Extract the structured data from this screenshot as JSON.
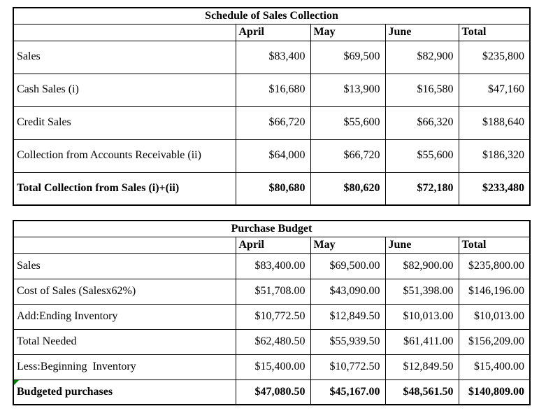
{
  "page": {
    "background_color": "#ffffff",
    "border_color": "#000000",
    "marker_color": "#008000"
  },
  "tables": [
    {
      "title": "Schedule of Sales Collection",
      "columns": [
        "April",
        "May",
        "June",
        "Total"
      ],
      "rows": [
        {
          "label": "Sales",
          "bold": false,
          "marker": false,
          "values": [
            "$83,400",
            "$69,500",
            "$82,900",
            "$235,800"
          ]
        },
        {
          "label": "Cash Sales (i)",
          "bold": false,
          "marker": false,
          "values": [
            "$16,680",
            "$13,900",
            "$16,580",
            "$47,160"
          ]
        },
        {
          "label": "Credit Sales",
          "bold": false,
          "marker": false,
          "values": [
            "$66,720",
            "$55,600",
            "$66,320",
            "$188,640"
          ]
        },
        {
          "label": "Collection from Accounts Receivable (ii)",
          "bold": false,
          "marker": false,
          "values": [
            "$64,000",
            "$66,720",
            "$55,600",
            "$186,320"
          ]
        },
        {
          "label": "Total Collection from Sales (i)+(ii)",
          "bold": true,
          "marker": false,
          "values": [
            "$80,680",
            "$80,620",
            "$72,180",
            "$233,480"
          ]
        }
      ]
    },
    {
      "title": "Purchase Budget",
      "columns": [
        "April",
        "May",
        "June",
        "Total"
      ],
      "rows": [
        {
          "label": "Sales",
          "bold": false,
          "marker": false,
          "values": [
            "$83,400.00",
            "$69,500.00",
            "$82,900.00",
            "$235,800.00"
          ]
        },
        {
          "label": "Cost of Sales (Salesx62%)",
          "bold": false,
          "marker": false,
          "values": [
            "$51,708.00",
            "$43,090.00",
            "$51,398.00",
            "$146,196.00"
          ]
        },
        {
          "label": "Add:Ending Inventory",
          "bold": false,
          "marker": false,
          "values": [
            "$10,772.50",
            "$12,849.50",
            "$10,013.00",
            "$10,013.00"
          ]
        },
        {
          "label": "Total Needed",
          "bold": false,
          "marker": false,
          "values": [
            "$62,480.50",
            "$55,939.50",
            "$61,411.00",
            "$156,209.00"
          ]
        },
        {
          "label": "Less:Beginning  Inventory",
          "bold": false,
          "marker": false,
          "values": [
            "$15,400.00",
            "$10,772.50",
            "$12,849.50",
            "$15,400.00"
          ]
        },
        {
          "label": "Budgeted purchases",
          "bold": true,
          "marker": true,
          "values": [
            "$47,080.50",
            "$45,167.00",
            "$48,561.50",
            "$140,809.00"
          ]
        }
      ]
    }
  ]
}
